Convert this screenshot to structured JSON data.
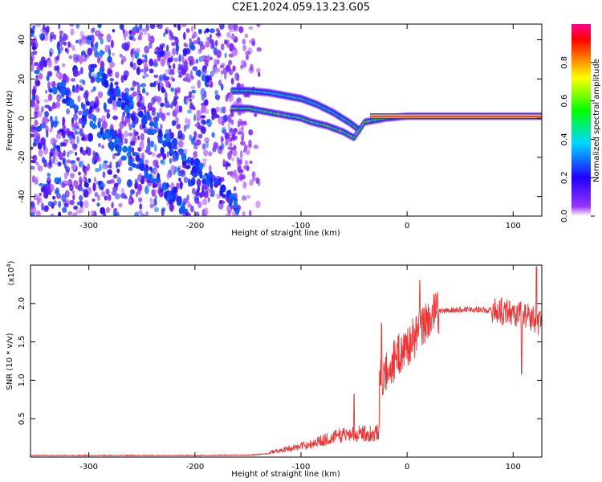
{
  "title": "C2E1.2024.059.13.23.G05",
  "chart_data": [
    {
      "type": "heatmap",
      "xlabel": "Height of straight line (km)",
      "ylabel": "Frequency (Hz)",
      "xlim": [
        -355,
        127
      ],
      "ylim": [
        -50,
        48
      ],
      "xticks": [
        -300,
        -200,
        -100,
        0,
        100
      ],
      "yticks": [
        -40,
        -20,
        0,
        20,
        40
      ],
      "colorbar": {
        "label": "Normalized spectral amplitude",
        "range": [
          0.0,
          1.0
        ],
        "ticks": [
          "0.0",
          "0.2",
          "0.4",
          "0.6",
          "0.8"
        ],
        "colors": [
          "#ffffff",
          "#8000ff",
          "#0000ff",
          "#00e0ff",
          "#00ff00",
          "#ffff00",
          "#ff8000",
          "#ff0000",
          "#ff00a0"
        ]
      },
      "noise_region_x": [
        -355,
        -155
      ],
      "signal_track": [
        {
          "x": -165,
          "f": 5
        },
        {
          "x": -150,
          "f": 5
        },
        {
          "x": -130,
          "f": 3
        },
        {
          "x": -110,
          "f": 1
        },
        {
          "x": -100,
          "f": 0
        },
        {
          "x": -90,
          "f": -2
        },
        {
          "x": -75,
          "f": -4
        },
        {
          "x": -60,
          "f": -7
        },
        {
          "x": -50,
          "f": -10
        },
        {
          "x": -40,
          "f": -2
        },
        {
          "x": -20,
          "f": 0
        },
        {
          "x": 0,
          "f": 1
        },
        {
          "x": 20,
          "f": 1
        },
        {
          "x": 60,
          "f": 1
        },
        {
          "x": 100,
          "f": 1
        },
        {
          "x": 127,
          "f": 1
        }
      ],
      "upper_track": [
        {
          "x": -165,
          "f": 14
        },
        {
          "x": -150,
          "f": 14
        },
        {
          "x": -130,
          "f": 13
        },
        {
          "x": -100,
          "f": 10
        },
        {
          "x": -85,
          "f": 7
        },
        {
          "x": -70,
          "f": 3
        },
        {
          "x": -55,
          "f": -2
        },
        {
          "x": -45,
          "f": -6
        }
      ]
    },
    {
      "type": "line",
      "xlabel": "Height of straight line (km)",
      "ylabel": "SNR (10 * v/v)",
      "scale_label": "(x10",
      "scale_exp": "4",
      "scale_suffix": ")",
      "xlim": [
        -355,
        127
      ],
      "ylim": [
        0,
        2.5
      ],
      "xticks": [
        -300,
        -200,
        -100,
        0,
        100
      ],
      "yticks": [
        "0.5",
        "1.0",
        "1.5",
        "2.0"
      ],
      "color": "#ee3333",
      "envelope": [
        {
          "x": -355,
          "y": 0.03
        },
        {
          "x": -200,
          "y": 0.03
        },
        {
          "x": -150,
          "y": 0.04
        },
        {
          "x": -130,
          "y": 0.08
        },
        {
          "x": -100,
          "y": 0.18
        },
        {
          "x": -80,
          "y": 0.28
        },
        {
          "x": -60,
          "y": 0.38
        },
        {
          "x": -40,
          "y": 0.4
        },
        {
          "x": -27,
          "y": 0.42
        },
        {
          "x": -26,
          "y": 1.0
        },
        {
          "x": -20,
          "y": 1.1
        },
        {
          "x": -10,
          "y": 1.3
        },
        {
          "x": 0,
          "y": 1.45
        },
        {
          "x": 10,
          "y": 1.6
        },
        {
          "x": 20,
          "y": 1.8
        },
        {
          "x": 30,
          "y": 1.9
        },
        {
          "x": 60,
          "y": 1.93
        },
        {
          "x": 90,
          "y": 1.9
        },
        {
          "x": 110,
          "y": 1.85
        },
        {
          "x": 127,
          "y": 1.75
        }
      ],
      "spikes": [
        {
          "x": -24,
          "y": 1.74
        },
        {
          "x": 12,
          "y": 2.3
        },
        {
          "x": 108,
          "y": 1.08
        },
        {
          "x": 122,
          "y": 2.48
        },
        {
          "x": -50,
          "y": 0.82
        }
      ]
    }
  ]
}
